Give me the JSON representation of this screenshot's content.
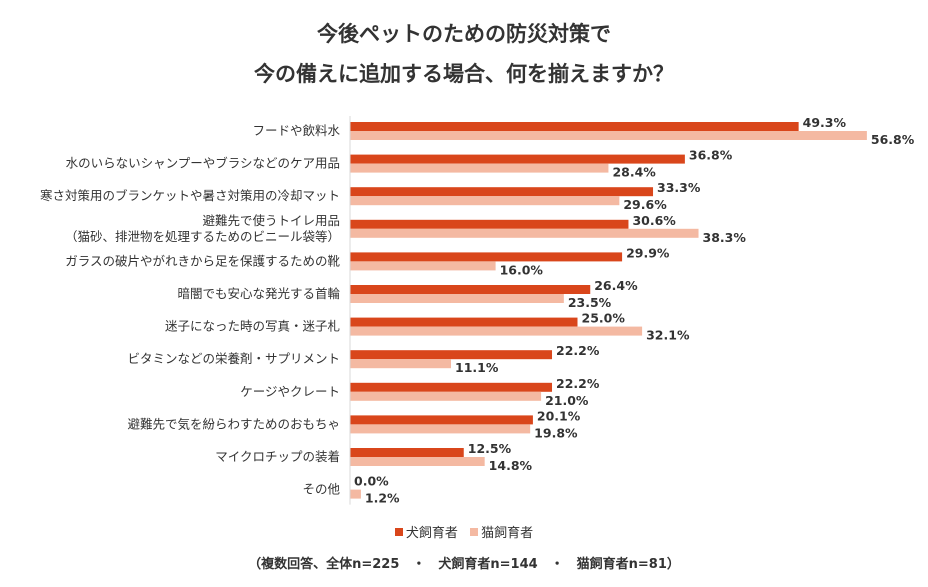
{
  "chart_data": {
    "type": "bar",
    "orientation": "horizontal",
    "title": [
      "今後ペットのための防災対策で",
      "今の備えに追加する場合、何を揃えますか？"
    ],
    "categories": [
      [
        "フードや飲料水"
      ],
      [
        "水のいらないシャンプーやブラシなどのケア用品"
      ],
      [
        "寒さ対策用のブランケットや暑さ対策用の冷却マット"
      ],
      [
        "避難先で使うトイレ用品",
        "（猫砂、排泄物を処理するためのビニール袋等）"
      ],
      [
        "ガラスの破片やがれきから足を保護するための靴"
      ],
      [
        "暗闇でも安心な発光する首輪"
      ],
      [
        "迷子になった時の写真・迷子札"
      ],
      [
        "ビタミンなどの栄養剤・サプリメント"
      ],
      [
        "ケージやクレート"
      ],
      [
        "避難先で気を紛らわすためのおもちゃ"
      ],
      [
        "マイクロチップの装着"
      ],
      [
        "その他"
      ]
    ],
    "series": [
      {
        "name": "犬飼育者",
        "color": "#d9461b",
        "values": [
          49.3,
          36.8,
          33.3,
          30.6,
          29.9,
          26.4,
          25.0,
          22.2,
          22.2,
          20.1,
          12.5,
          0.0
        ],
        "labels": [
          "49.3%",
          "36.8%",
          "33.3%",
          "30.6%",
          "29.9%",
          "26.4%",
          "25.0%",
          "22.2%",
          "22.2%",
          "20.1%",
          "12.5%",
          "0.0%"
        ]
      },
      {
        "name": "猫飼育者",
        "color": "#f4b9a2",
        "values": [
          56.8,
          28.4,
          29.6,
          38.3,
          16.0,
          23.5,
          32.1,
          11.1,
          21.0,
          19.8,
          14.8,
          1.2
        ],
        "labels": [
          "56.8%",
          "28.4%",
          "29.6%",
          "38.3%",
          "16.0%",
          "23.5%",
          "32.1%",
          "11.1%",
          "21.0%",
          "19.8%",
          "14.8%",
          "1.2%"
        ]
      }
    ],
    "unit": "%",
    "xlim": [
      0,
      60
    ],
    "grid": false,
    "legend_position": "bottom",
    "footnote": "（複数回答、全体n=225　・　犬飼育者n=144　・　猫飼育者n=81）"
  }
}
